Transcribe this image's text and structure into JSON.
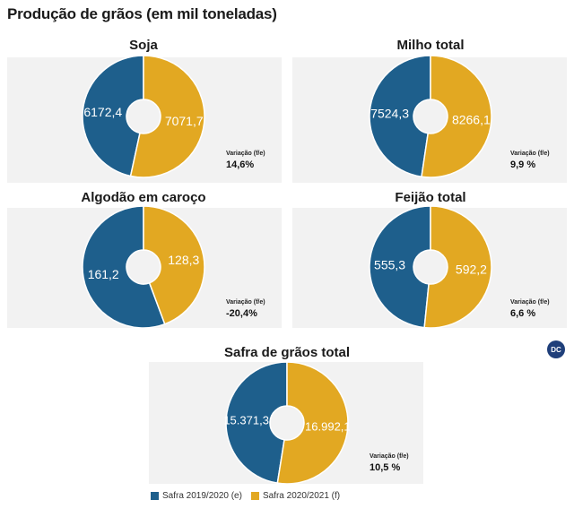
{
  "title": "Produção de grãos (em mil toneladas)",
  "colors": {
    "safra_2019": "#1e5f8c",
    "safra_2021": "#e2a822"
  },
  "variation_label": "Variação (f/e)",
  "logo_text": "DC",
  "chart_data": [
    {
      "type": "pie",
      "title": "Soja",
      "labels": [
        "6172,4",
        "7071,7"
      ],
      "values": [
        6172.4,
        7071.7
      ],
      "variation": "14,6%"
    },
    {
      "type": "pie",
      "title": "Milho total",
      "labels": [
        "7524,3",
        "8266,1"
      ],
      "values": [
        7524.3,
        8266.1
      ],
      "variation": "9,9 %"
    },
    {
      "type": "pie",
      "title": "Algodão em caroço",
      "labels": [
        "161,2",
        "128,3"
      ],
      "values": [
        161.2,
        128.3
      ],
      "variation": "-20,4%"
    },
    {
      "type": "pie",
      "title": "Feijão total",
      "labels": [
        "555,3",
        "592,2"
      ],
      "values": [
        555.3,
        592.2
      ],
      "variation": "6,6 %"
    },
    {
      "type": "pie",
      "title": "Safra de grãos total",
      "labels": [
        "15.371,3",
        "16.992,1"
      ],
      "values": [
        15371.3,
        16992.1
      ],
      "variation": "10,5 %"
    }
  ],
  "legend": [
    "Safra 2019/2020 (e)",
    "Safra 2020/2021 (f)"
  ]
}
